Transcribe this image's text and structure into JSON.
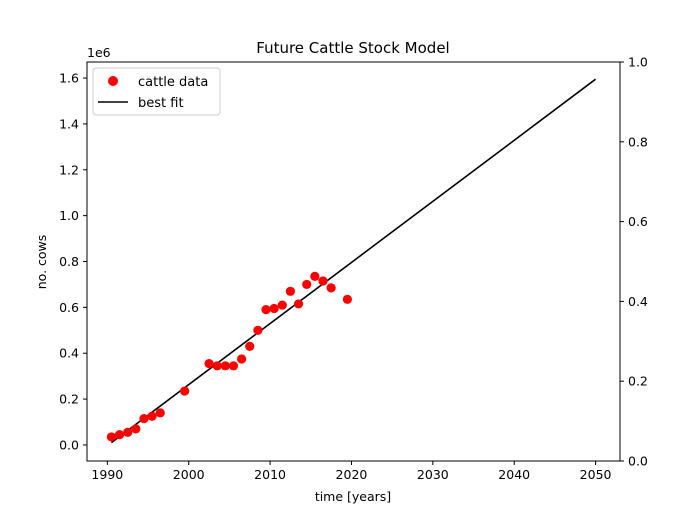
{
  "chart_data": {
    "type": "scatter",
    "title": "Future Cattle Stock Model",
    "xlabel": "time [years]",
    "ylabel": "no. cows",
    "y_offset_label": "1e6",
    "xlim": [
      1987.5,
      2053
    ],
    "ylim": [
      -0.07,
      1.67
    ],
    "y_units_multiplier": 1000000,
    "x_ticks": [
      1990,
      2000,
      2010,
      2020,
      2030,
      2040,
      2050
    ],
    "x_tick_labels": [
      "1990",
      "2000",
      "2010",
      "2020",
      "2030",
      "2040",
      "2050"
    ],
    "y_ticks": [
      0.0,
      0.2,
      0.4,
      0.6,
      0.8,
      1.0,
      1.2,
      1.4,
      1.6
    ],
    "y_tick_labels": [
      "0.0",
      "0.2",
      "0.4",
      "0.6",
      "0.8",
      "1.0",
      "1.2",
      "1.4",
      "1.6"
    ],
    "y2lim": [
      0.0,
      1.0
    ],
    "y2_ticks": [
      0.0,
      0.2,
      0.4,
      0.6,
      0.8,
      1.0
    ],
    "y2_tick_labels": [
      "0.0",
      "0.2",
      "0.4",
      "0.6",
      "0.8",
      "1.0"
    ],
    "grid": false,
    "legend_position": "top-left",
    "series": [
      {
        "name": "cattle data",
        "kind": "scatter",
        "color": "#ff0000",
        "x": [
          1990.5,
          1991.5,
          1992.5,
          1993.5,
          1994.5,
          1995.5,
          1996.5,
          1999.5,
          2002.5,
          2003.5,
          2004.5,
          2005.5,
          2006.5,
          2007.5,
          2008.5,
          2009.5,
          2010.5,
          2011.5,
          2012.5,
          2013.5,
          2014.5,
          2015.5,
          2016.5,
          2017.5,
          2019.5
        ],
        "y": [
          0.035,
          0.045,
          0.055,
          0.07,
          0.115,
          0.125,
          0.14,
          0.235,
          0.355,
          0.345,
          0.345,
          0.345,
          0.375,
          0.43,
          0.5,
          0.59,
          0.595,
          0.61,
          0.67,
          0.615,
          0.7,
          0.735,
          0.715,
          0.685,
          0.635
        ]
      },
      {
        "name": "best fit",
        "kind": "line",
        "color": "#000000",
        "x": [
          1990.5,
          2050
        ],
        "y": [
          0.01,
          1.595
        ]
      }
    ]
  }
}
